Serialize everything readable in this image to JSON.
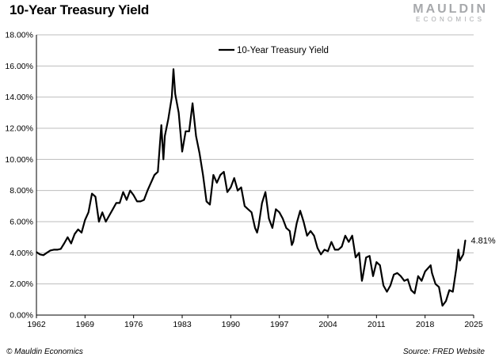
{
  "title": "10-Year Treasury Yield",
  "logo": {
    "main": "MAULDIN",
    "sub": "ECONOMICS"
  },
  "footer": {
    "copyright": "© Mauldin Economics",
    "source": "Source: FRED Website"
  },
  "chart_data": {
    "type": "line",
    "title": "10-Year Treasury Yield",
    "xlabel": "",
    "ylabel": "",
    "xlim": [
      1962,
      2025
    ],
    "ylim": [
      0,
      18
    ],
    "x_ticks": [
      "1962",
      "1969",
      "1976",
      "1983",
      "1990",
      "1997",
      "2004",
      "2011",
      "2018",
      "2025"
    ],
    "y_ticks": [
      "0.00%",
      "2.00%",
      "4.00%",
      "6.00%",
      "8.00%",
      "10.00%",
      "12.00%",
      "14.00%",
      "16.00%",
      "18.00%"
    ],
    "grid": "horizontal",
    "legend": "top-center",
    "annotation": "4.81%",
    "series": [
      {
        "name": "10-Year Treasury Yield",
        "color": "#000000",
        "x": [
          1962.0,
          1962.5,
          1963.0,
          1963.5,
          1964.0,
          1964.5,
          1965.0,
          1965.5,
          1966.0,
          1966.5,
          1967.0,
          1967.5,
          1968.0,
          1968.5,
          1969.0,
          1969.5,
          1970.0,
          1970.5,
          1971.0,
          1971.5,
          1972.0,
          1972.5,
          1973.0,
          1973.5,
          1974.0,
          1974.5,
          1975.0,
          1975.5,
          1976.0,
          1976.5,
          1977.0,
          1977.5,
          1978.0,
          1978.5,
          1979.0,
          1979.5,
          1980.0,
          1980.3,
          1980.5,
          1981.0,
          1981.5,
          1981.75,
          1982.0,
          1982.5,
          1983.0,
          1983.5,
          1984.0,
          1984.5,
          1985.0,
          1985.5,
          1986.0,
          1986.5,
          1987.0,
          1987.5,
          1988.0,
          1988.5,
          1989.0,
          1989.5,
          1990.0,
          1990.5,
          1991.0,
          1991.5,
          1992.0,
          1992.5,
          1993.0,
          1993.5,
          1993.8,
          1994.0,
          1994.5,
          1995.0,
          1995.5,
          1996.0,
          1996.5,
          1997.0,
          1997.5,
          1998.0,
          1998.5,
          1998.8,
          1999.0,
          1999.5,
          2000.0,
          2000.5,
          2001.0,
          2001.5,
          2002.0,
          2002.5,
          2003.0,
          2003.5,
          2004.0,
          2004.5,
          2005.0,
          2005.5,
          2006.0,
          2006.5,
          2007.0,
          2007.5,
          2008.0,
          2008.5,
          2008.9,
          2009.0,
          2009.5,
          2010.0,
          2010.5,
          2011.0,
          2011.5,
          2012.0,
          2012.5,
          2013.0,
          2013.5,
          2014.0,
          2014.5,
          2015.0,
          2015.5,
          2016.0,
          2016.5,
          2017.0,
          2017.5,
          2018.0,
          2018.8,
          2019.0,
          2019.5,
          2020.0,
          2020.5,
          2021.0,
          2021.5,
          2022.0,
          2022.5,
          2022.8,
          2023.0,
          2023.5,
          2023.8
        ],
        "values": [
          4.05,
          3.9,
          3.85,
          4.0,
          4.15,
          4.2,
          4.2,
          4.25,
          4.6,
          5.0,
          4.6,
          5.2,
          5.5,
          5.3,
          6.1,
          6.6,
          7.8,
          7.6,
          6.0,
          6.6,
          6.0,
          6.4,
          6.8,
          7.2,
          7.2,
          7.9,
          7.4,
          8.0,
          7.7,
          7.3,
          7.3,
          7.4,
          8.0,
          8.5,
          9.0,
          9.2,
          12.2,
          10.0,
          11.5,
          12.6,
          14.0,
          15.8,
          14.2,
          13.0,
          10.5,
          11.8,
          11.8,
          13.6,
          11.5,
          10.4,
          9.0,
          7.3,
          7.1,
          9.0,
          8.5,
          9.0,
          9.2,
          7.9,
          8.2,
          8.8,
          8.0,
          8.2,
          7.0,
          6.8,
          6.6,
          5.6,
          5.3,
          5.7,
          7.2,
          7.9,
          6.2,
          5.6,
          6.8,
          6.6,
          6.2,
          5.6,
          5.4,
          4.5,
          4.7,
          5.9,
          6.7,
          6.0,
          5.1,
          5.4,
          5.1,
          4.3,
          3.9,
          4.2,
          4.1,
          4.7,
          4.2,
          4.2,
          4.4,
          5.1,
          4.7,
          5.1,
          3.7,
          4.0,
          2.2,
          2.4,
          3.7,
          3.8,
          2.5,
          3.4,
          3.2,
          1.9,
          1.5,
          1.9,
          2.6,
          2.7,
          2.5,
          2.2,
          2.3,
          1.6,
          1.4,
          2.5,
          2.2,
          2.8,
          3.2,
          2.7,
          2.0,
          1.8,
          0.6,
          0.9,
          1.6,
          1.5,
          3.0,
          4.2,
          3.5,
          3.9,
          4.81
        ]
      }
    ]
  }
}
